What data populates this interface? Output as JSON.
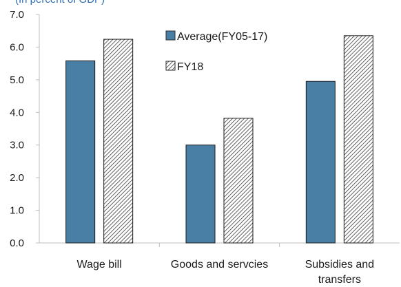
{
  "chart_data": {
    "type": "bar",
    "subtitle": "(In percent of GDP)",
    "categories": [
      [
        "Wage bill"
      ],
      [
        "Goods and servcies"
      ],
      [
        "Subsidies and",
        "transfers"
      ]
    ],
    "series": [
      {
        "name": "Average(FY05-17)",
        "values": [
          5.58,
          3.0,
          4.95
        ],
        "color": "#4a7fa5",
        "pattern": "solid"
      },
      {
        "name": "FY18",
        "values": [
          6.24,
          3.82,
          6.35
        ],
        "color": "#3a3a3a",
        "pattern": "diagonal-hatch"
      }
    ],
    "yticks": [
      "0.0",
      "1.0",
      "2.0",
      "3.0",
      "4.0",
      "5.0",
      "6.0",
      "7.0"
    ],
    "ylim": [
      0,
      7
    ],
    "legend_position": "top-center",
    "grid": false,
    "colors": {
      "axis": "#bfbfbf",
      "subtitle": "#2e6fb5"
    }
  }
}
